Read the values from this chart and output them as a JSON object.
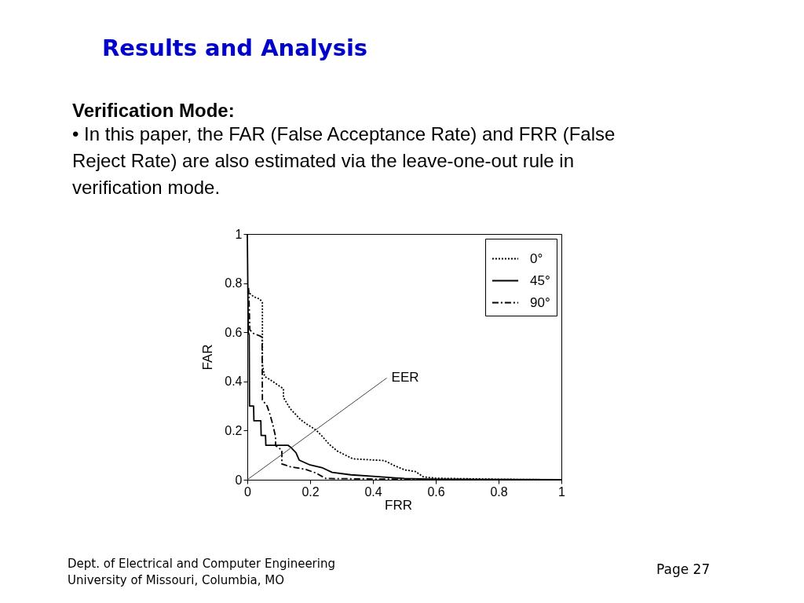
{
  "chart_data": {
    "type": "line",
    "title": "Results and Analysis",
    "subtitle": "Verification Mode:",
    "xlabel": "FRR",
    "ylabel": "FAR",
    "annotations": [
      "• In this paper, the FAR (False Acceptance Rate) and FRR (False Reject Rate) are also estimated via the leave-one-out rule in verification mode.",
      "Dept. of Electrical and Computer Engineering",
      "University of Missouri, Columbia, MO",
      "Page 27",
      {
        "text": "EER",
        "x": 0.444,
        "y": 0.414
      }
    ],
    "xlim": [
      0,
      1
    ],
    "ylim": [
      0,
      1
    ],
    "xticks": [
      0,
      0.2,
      0.4,
      0.6,
      0.8,
      1
    ],
    "yticks": [
      0,
      0.2,
      0.4,
      0.6,
      0.8,
      1
    ],
    "grid": false,
    "legend": "top right",
    "marker": "none",
    "series": [
      {
        "name": "0°",
        "color": "#000000",
        "line_style": "dotted",
        "x": [
          0.003,
          0.006,
          0.02,
          0.04,
          0.048,
          0.048,
          0.055,
          0.069,
          0.1,
          0.115,
          0.115,
          0.136,
          0.169,
          0.186,
          0.219,
          0.236,
          0.261,
          0.286,
          0.336,
          0.436,
          0.469,
          0.502,
          0.536,
          0.56,
          0.6,
          0.8,
          1.0
        ],
        "values": [
          0.77,
          0.76,
          0.745,
          0.735,
          0.72,
          0.47,
          0.42,
          0.41,
          0.383,
          0.37,
          0.335,
          0.29,
          0.245,
          0.229,
          0.202,
          0.18,
          0.144,
          0.117,
          0.085,
          0.078,
          0.057,
          0.04,
          0.033,
          0.012,
          0.006,
          0.002,
          0
        ]
      },
      {
        "name": "45°",
        "color": "#000000",
        "line_style": "solid",
        "x": [
          0,
          0.003,
          0.006,
          0.007,
          0.02,
          0.021,
          0.043,
          0.044,
          0.058,
          0.059,
          0.13,
          0.14,
          0.155,
          0.165,
          0.2,
          0.24,
          0.27,
          0.33,
          0.4,
          0.5,
          0.6,
          1.0
        ],
        "values": [
          1,
          0.6,
          0.59,
          0.3,
          0.3,
          0.24,
          0.24,
          0.18,
          0.18,
          0.14,
          0.14,
          0.13,
          0.11,
          0.08,
          0.06,
          0.048,
          0.03,
          0.02,
          0.014,
          0.005,
          0.002,
          0
        ]
      },
      {
        "name": "90°",
        "color": "#000000",
        "line_style": "dashdot",
        "x": [
          0.004,
          0.005,
          0.008,
          0.02,
          0.04,
          0.047,
          0.048,
          0.063,
          0.072,
          0.08,
          0.09,
          0.09,
          0.11,
          0.11,
          0.136,
          0.186,
          0.219,
          0.25,
          0.4,
          0.6,
          1.0
        ],
        "values": [
          0.78,
          0.75,
          0.61,
          0.595,
          0.585,
          0.58,
          0.325,
          0.3,
          0.266,
          0.23,
          0.175,
          0.139,
          0.12,
          0.064,
          0.053,
          0.042,
          0.027,
          0.005,
          0.003,
          0.001,
          0
        ]
      },
      {
        "color": "#444444",
        "line_style": "solid",
        "x": [
          0,
          0.444
        ],
        "values": [
          0,
          0.414
        ]
      }
    ]
  }
}
